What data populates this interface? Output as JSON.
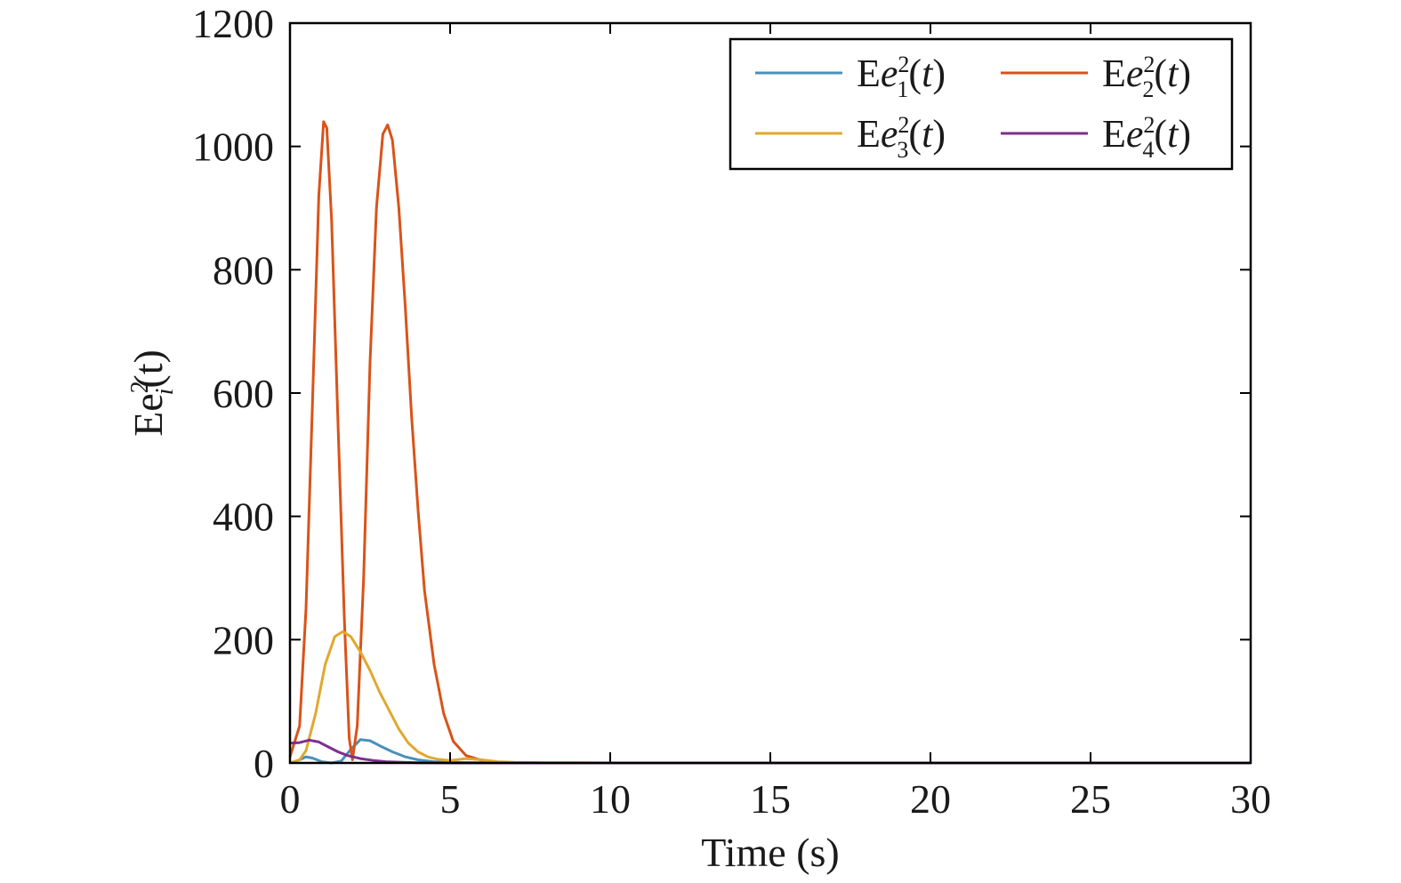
{
  "chart_data": {
    "type": "line",
    "xlabel": "Time (s)",
    "ylabel": {
      "base": "Ee",
      "sup": "2",
      "sub": "i",
      "tail": "(t)"
    },
    "xlim": [
      0,
      30
    ],
    "ylim": [
      0,
      1200
    ],
    "xticks": [
      "0",
      "5",
      "10",
      "15",
      "20",
      "25",
      "30"
    ],
    "yticks": [
      "0",
      "200",
      "400",
      "600",
      "800",
      "1000",
      "1200"
    ],
    "grid": false,
    "legend_position": "top-right",
    "legend_columns": 2,
    "series": [
      {
        "name": {
          "base": "Ee",
          "sup": "2",
          "sub": "1",
          "tail": "(t)"
        },
        "color": "#4a90b8",
        "points": [
          [
            0,
            0
          ],
          [
            0.3,
            5
          ],
          [
            0.5,
            10
          ],
          [
            0.7,
            8
          ],
          [
            1.0,
            2
          ],
          [
            1.3,
            0
          ],
          [
            1.6,
            3
          ],
          [
            1.9,
            22
          ],
          [
            2.2,
            38
          ],
          [
            2.5,
            36
          ],
          [
            2.8,
            28
          ],
          [
            3.2,
            18
          ],
          [
            3.6,
            10
          ],
          [
            4.0,
            5
          ],
          [
            4.5,
            2
          ],
          [
            5.0,
            1
          ],
          [
            6.0,
            0.5
          ],
          [
            8.0,
            0
          ],
          [
            30,
            0
          ]
        ]
      },
      {
        "name": {
          "base": "Ee",
          "sup": "2",
          "sub": "2",
          "tail": "(t)"
        },
        "color": "#d95319",
        "points": [
          [
            0,
            10
          ],
          [
            0.3,
            60
          ],
          [
            0.5,
            250
          ],
          [
            0.7,
            580
          ],
          [
            0.9,
            920
          ],
          [
            1.05,
            1040
          ],
          [
            1.15,
            1030
          ],
          [
            1.3,
            880
          ],
          [
            1.5,
            550
          ],
          [
            1.7,
            230
          ],
          [
            1.85,
            40
          ],
          [
            1.95,
            5
          ],
          [
            2.1,
            60
          ],
          [
            2.3,
            300
          ],
          [
            2.5,
            650
          ],
          [
            2.7,
            900
          ],
          [
            2.9,
            1020
          ],
          [
            3.05,
            1035
          ],
          [
            3.2,
            1010
          ],
          [
            3.4,
            900
          ],
          [
            3.6,
            740
          ],
          [
            3.8,
            560
          ],
          [
            4.0,
            410
          ],
          [
            4.2,
            280
          ],
          [
            4.5,
            160
          ],
          [
            4.8,
            80
          ],
          [
            5.1,
            35
          ],
          [
            5.5,
            12
          ],
          [
            6.0,
            4
          ],
          [
            6.5,
            1
          ],
          [
            7.0,
            0
          ],
          [
            30,
            0
          ]
        ]
      },
      {
        "name": {
          "base": "Ee",
          "sup": "2",
          "sub": "3",
          "tail": "(t)"
        },
        "color": "#e0a82e",
        "points": [
          [
            0,
            0
          ],
          [
            0.3,
            5
          ],
          [
            0.5,
            20
          ],
          [
            0.8,
            80
          ],
          [
            1.1,
            160
          ],
          [
            1.4,
            205
          ],
          [
            1.65,
            213
          ],
          [
            1.9,
            205
          ],
          [
            2.2,
            180
          ],
          [
            2.5,
            150
          ],
          [
            2.8,
            115
          ],
          [
            3.1,
            85
          ],
          [
            3.4,
            55
          ],
          [
            3.7,
            32
          ],
          [
            4.0,
            18
          ],
          [
            4.3,
            10
          ],
          [
            4.6,
            6
          ],
          [
            5.0,
            4
          ],
          [
            5.5,
            7
          ],
          [
            6.0,
            5
          ],
          [
            6.5,
            2
          ],
          [
            7.0,
            1
          ],
          [
            8.0,
            0.5
          ],
          [
            9.0,
            0.3
          ],
          [
            10.0,
            0
          ],
          [
            30,
            0
          ]
        ]
      },
      {
        "name": {
          "base": "Ee",
          "sup": "2",
          "sub": "4",
          "tail": "(t)"
        },
        "color": "#7e2f8e",
        "points": [
          [
            0,
            32
          ],
          [
            0.3,
            33
          ],
          [
            0.6,
            37
          ],
          [
            0.9,
            34
          ],
          [
            1.2,
            26
          ],
          [
            1.5,
            18
          ],
          [
            1.8,
            12
          ],
          [
            2.2,
            7
          ],
          [
            2.6,
            4
          ],
          [
            3.0,
            2
          ],
          [
            3.5,
            1
          ],
          [
            4.0,
            0.5
          ],
          [
            5.0,
            0
          ],
          [
            30,
            0
          ]
        ]
      }
    ]
  }
}
